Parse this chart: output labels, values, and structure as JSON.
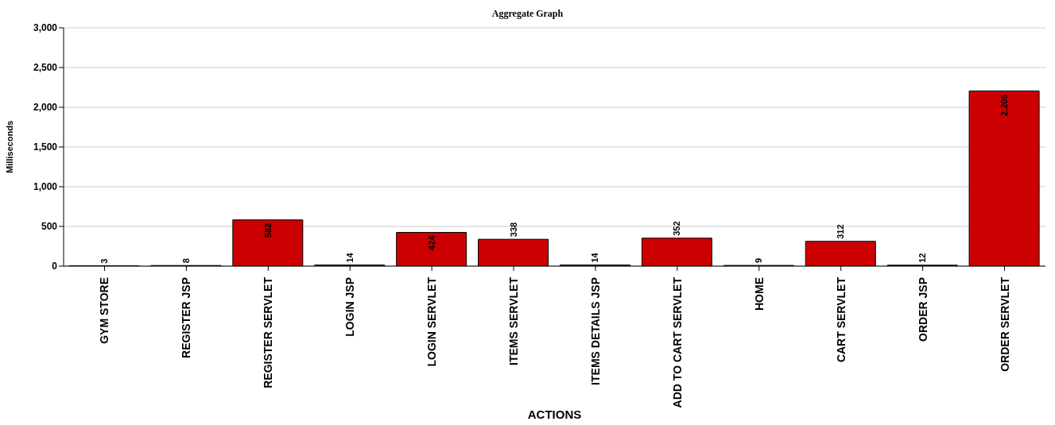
{
  "chart_data": {
    "type": "bar",
    "title": "Aggregate Graph",
    "xlabel": "ACTIONS",
    "ylabel": "Milliseconds",
    "categories": [
      "GYM STORE",
      "REGISTER JSP",
      "REGISTER SERVLET",
      "LOGIN JSP",
      "LOGIN SERVLET",
      "ITEMS SERVLET",
      "ITEMS DETAILS JSP",
      "ADD TO CART SERVLET",
      "HOME",
      "CART SERVLET",
      "ORDER JSP",
      "ORDER SERVLET"
    ],
    "values": [
      3,
      8,
      582,
      14,
      424,
      338,
      14,
      352,
      9,
      312,
      12,
      2205
    ],
    "value_labels": [
      "3",
      "8",
      "582",
      "14",
      "424",
      "338",
      "14",
      "352",
      "9",
      "312",
      "12",
      "2,205"
    ],
    "color": "#cc0000",
    "ylim": [
      0,
      3000
    ],
    "yticks": [
      {
        "value": 0,
        "label": "0"
      },
      {
        "value": 500,
        "label": "500"
      },
      {
        "value": 1000,
        "label": "1,000"
      },
      {
        "value": 1500,
        "label": "1,500"
      },
      {
        "value": 2000,
        "label": "2,000"
      },
      {
        "value": 2500,
        "label": "2,500"
      },
      {
        "value": 3000,
        "label": "3,000"
      }
    ],
    "grid": "y",
    "legend": false
  }
}
